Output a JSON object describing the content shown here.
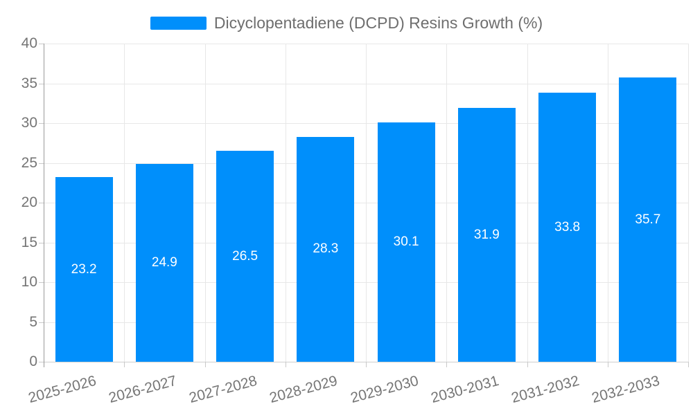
{
  "legend": {
    "label": "Dicyclopentadiene (DCPD) Resins Growth (%)"
  },
  "chart_data": {
    "type": "bar",
    "title": "",
    "categories": [
      "2025-2026",
      "2026-2027",
      "2027-2028",
      "2028-2029",
      "2029-2030",
      "2030-2031",
      "2031-2032",
      "2032-2033"
    ],
    "series": [
      {
        "name": "Dicyclopentadiene (DCPD) Resins Growth (%)",
        "values": [
          23.2,
          24.9,
          26.5,
          28.3,
          30.1,
          31.9,
          33.8,
          35.7
        ],
        "color": "#008FFB"
      }
    ],
    "value_labels": [
      "23.2",
      "24.9",
      "26.5",
      "28.3",
      "30.1",
      "31.9",
      "33.8",
      "35.7"
    ],
    "xlabel": "",
    "ylabel": "",
    "ylim": [
      0,
      40
    ],
    "yticks": [
      0,
      5,
      10,
      15,
      20,
      25,
      30,
      35,
      40
    ],
    "grid": true,
    "legend_position": "top-center",
    "x_label_rotation_deg": -15
  },
  "colors": {
    "background": "#ffffff",
    "bar": "#008FFB",
    "grid_line": "#e7e7e7",
    "baseline": "#cfcfcf",
    "axis_line": "#999999",
    "tick": "#c9c9c9",
    "axis_label_text": "#757575",
    "legend_text": "#6e6e6e",
    "bar_label_text": "#ffffff"
  }
}
